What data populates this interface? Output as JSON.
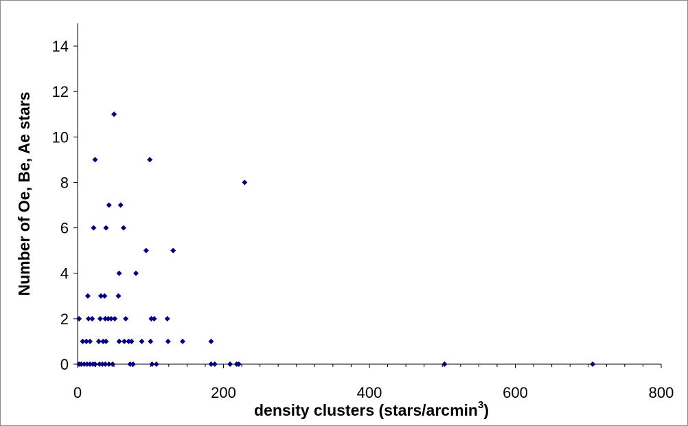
{
  "chart_data": {
    "type": "scatter",
    "title": "",
    "xlabel": "density clusters (stars/arcmin",
    "xlabel_superscript": "3",
    "xlabel_close": ")",
    "ylabel": "Number of Oe, Be, Ae stars",
    "xlim": [
      0,
      800
    ],
    "ylim": [
      0,
      15
    ],
    "x_ticks": [
      0,
      200,
      400,
      600,
      800
    ],
    "y_ticks": [
      0,
      2,
      4,
      6,
      8,
      10,
      12,
      14
    ],
    "grid": false,
    "legend": "none",
    "marker": "diamond",
    "marker_color": "#00007f",
    "series": [
      {
        "points": [
          [
            2,
            0
          ],
          [
            5,
            0
          ],
          [
            9,
            0
          ],
          [
            13,
            0
          ],
          [
            17,
            0
          ],
          [
            21,
            0
          ],
          [
            24,
            0
          ],
          [
            30,
            0
          ],
          [
            34,
            0
          ],
          [
            38,
            0
          ],
          [
            43,
            0
          ],
          [
            48,
            0
          ],
          [
            72,
            0
          ],
          [
            76,
            0
          ],
          [
            102,
            0
          ],
          [
            108,
            0
          ],
          [
            183,
            0
          ],
          [
            188,
            0
          ],
          [
            209,
            0
          ],
          [
            218,
            0
          ],
          [
            221,
            0
          ],
          [
            503,
            0
          ],
          [
            706,
            0
          ],
          [
            7,
            1
          ],
          [
            12,
            1
          ],
          [
            17,
            1
          ],
          [
            29,
            1
          ],
          [
            35,
            1
          ],
          [
            39,
            1
          ],
          [
            57,
            1
          ],
          [
            64,
            1
          ],
          [
            70,
            1
          ],
          [
            74,
            1
          ],
          [
            88,
            1
          ],
          [
            100,
            1
          ],
          [
            124,
            1
          ],
          [
            144,
            1
          ],
          [
            183,
            1
          ],
          [
            2,
            2
          ],
          [
            15,
            2
          ],
          [
            20,
            2
          ],
          [
            31,
            2
          ],
          [
            38,
            2
          ],
          [
            42,
            2
          ],
          [
            46,
            2
          ],
          [
            51,
            2
          ],
          [
            66,
            2
          ],
          [
            101,
            2
          ],
          [
            105,
            2
          ],
          [
            123,
            2
          ],
          [
            14,
            3
          ],
          [
            32,
            3
          ],
          [
            37,
            3
          ],
          [
            56,
            3
          ],
          [
            57,
            4
          ],
          [
            80,
            4
          ],
          [
            94,
            5
          ],
          [
            131,
            5
          ],
          [
            22,
            6
          ],
          [
            39,
            6
          ],
          [
            63,
            6
          ],
          [
            43,
            7
          ],
          [
            59,
            7
          ],
          [
            229,
            8
          ],
          [
            24,
            9
          ],
          [
            99,
            9
          ],
          [
            50,
            11
          ]
        ]
      }
    ]
  }
}
